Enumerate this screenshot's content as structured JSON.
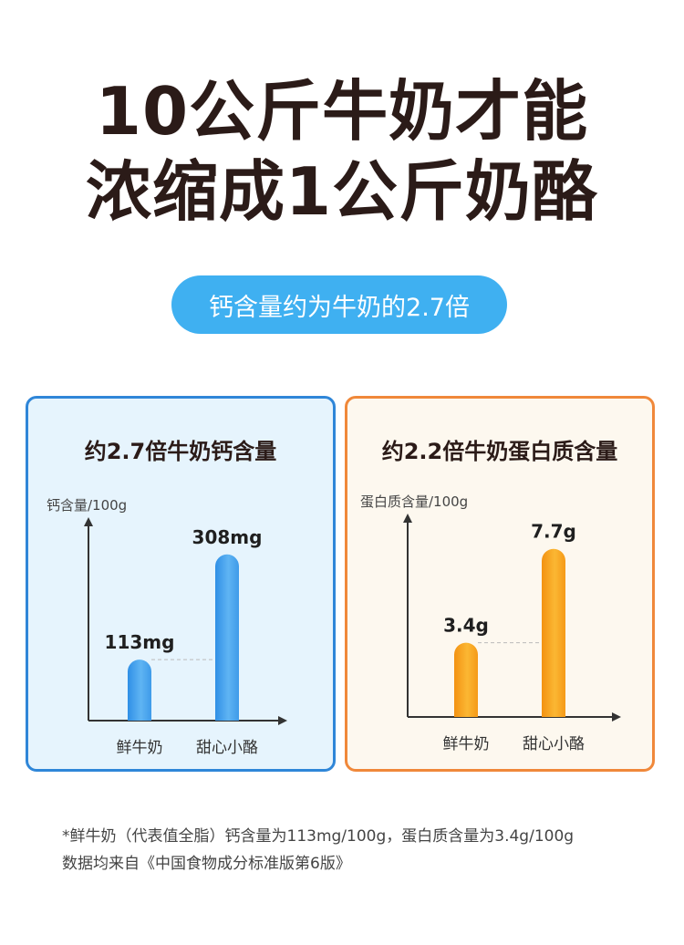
{
  "headline": {
    "line1": "10公斤牛奶才能",
    "line2": "浓缩成1公斤奶酪"
  },
  "pill": {
    "text": "钙含量约为牛奶的2.7倍"
  },
  "colors": {
    "pill": "#3fb0f1",
    "calcium_border": "#2f86d8",
    "protein_border": "#f0883a",
    "calcium_bar": "#4aa6ee",
    "protein_bar": "#f7a21c"
  },
  "chart_data": [
    {
      "type": "bar",
      "title": "约2.7倍牛奶钙含量",
      "ylabel": "钙含量/100g",
      "categories": [
        "鲜牛奶",
        "甜心小酪"
      ],
      "values": [
        113,
        308
      ],
      "value_labels": [
        "113mg",
        "308mg"
      ],
      "ylim": [
        0,
        360
      ],
      "grid": false,
      "reference_line_at": 113
    },
    {
      "type": "bar",
      "title": "约2.2倍牛奶蛋白质含量",
      "ylabel": "蛋白质含量/100g",
      "categories": [
        "鲜牛奶",
        "甜心小酪"
      ],
      "values": [
        3.4,
        7.7
      ],
      "value_labels": [
        "3.4g",
        "7.7g"
      ],
      "ylim": [
        0,
        8.9
      ],
      "grid": false,
      "reference_line_at": 3.4
    }
  ],
  "footnote": {
    "line1": "*鲜牛奶（代表值全脂）钙含量为113mg/100g，蛋白质含量为3.4g/100g",
    "line2": "数据均来自《中国食物成分标准版第6版》"
  }
}
